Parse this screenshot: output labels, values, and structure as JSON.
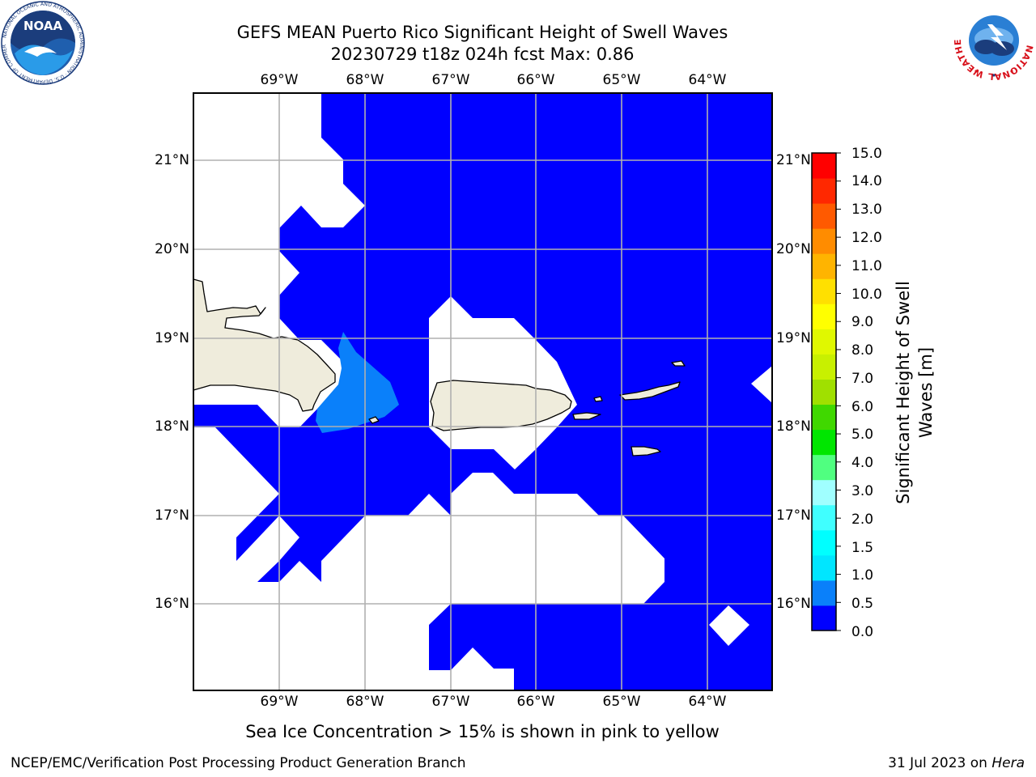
{
  "header": {
    "title_line1": "GEFS MEAN Puerto Rico Significant Height of Swell Waves",
    "title_line2": "20230729 t18z 024h fcst   Max: 0.86"
  },
  "map": {
    "longitude_labels": [
      "69°W",
      "68°W",
      "67°W",
      "66°W",
      "65°W",
      "64°W"
    ],
    "latitude_labels": [
      "21°N",
      "20°N",
      "19°N",
      "18°N",
      "17°N",
      "16°N"
    ],
    "lon_range": [
      -70,
      -63.25
    ],
    "lat_range": [
      15,
      21.75
    ],
    "gridlines": true,
    "land_color": "#efecdc",
    "field_colors": {
      "0.0-0.5": "#0000ff",
      "0.5-1.0": "#0a80fa"
    }
  },
  "colorbar": {
    "title": "Significant Height of Swell Waves [m]",
    "ticks": [
      "15.0",
      "14.0",
      "13.0",
      "12.0",
      "11.0",
      "10.0",
      "9.0",
      "8.0",
      "7.0",
      "6.0",
      "5.0",
      "4.0",
      "3.0",
      "2.0",
      "1.5",
      "1.0",
      "0.5",
      "0.0"
    ],
    "colors_bottom_to_top": [
      "#0000ff",
      "#0a80fa",
      "#00e6ff",
      "#00ffff",
      "#40ffff",
      "#a0ffff",
      "#50ff80",
      "#00e600",
      "#40d800",
      "#a0e000",
      "#c8f000",
      "#e0f800",
      "#ffff00",
      "#ffe000",
      "#ffb400",
      "#ff8c00",
      "#ff5a00",
      "#ff2800",
      "#ff0000"
    ]
  },
  "notes": {
    "sea_ice": "Sea Ice Concentration > 15% is shown in pink to yellow"
  },
  "footer": {
    "left": "NCEP/EMC/Verification Post Processing Product Generation Branch",
    "right_date": "31 Jul 2023 on ",
    "right_host": "Hera"
  },
  "logos": {
    "noaa_text": "NOAA",
    "noaa_ring": "NATIONAL OCEANIC AND ATMOSPHERIC ADMINISTRATION · U.S. DEPARTMENT OF COMMERCE ·",
    "nws_ring": "NATIONAL WEATHER SERVICE"
  }
}
